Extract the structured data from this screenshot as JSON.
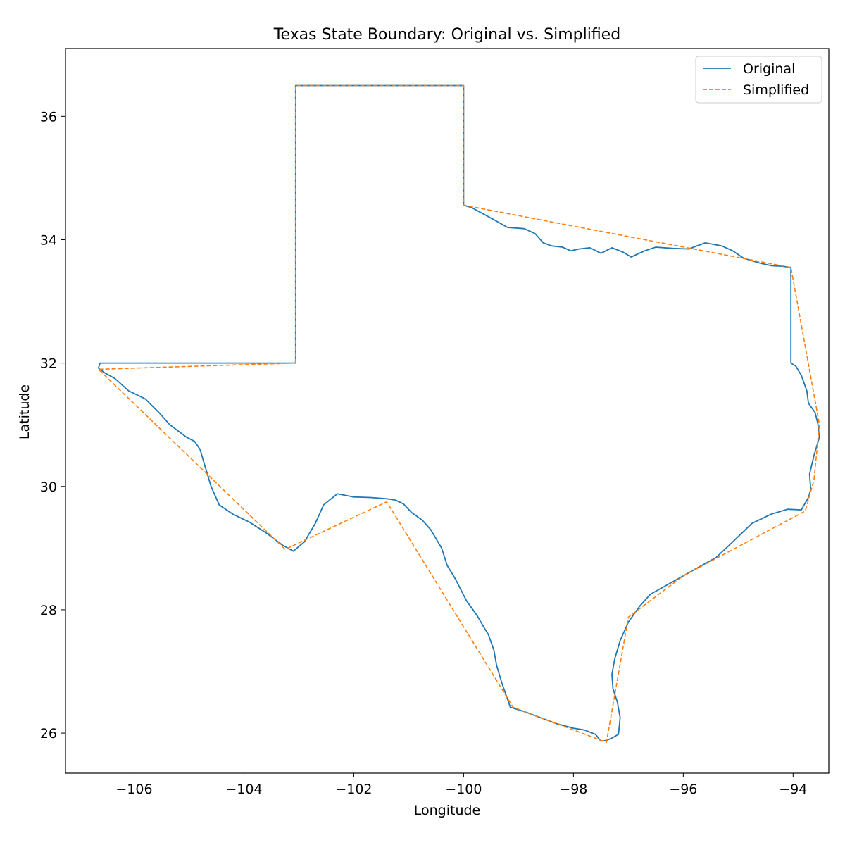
{
  "chart_data": {
    "type": "line",
    "title": "Texas State Boundary: Original vs. Simplified",
    "xlabel": "Longitude",
    "ylabel": "Latitude",
    "xlim": [
      -107.25,
      -93.35
    ],
    "ylim": [
      25.35,
      37.1
    ],
    "x_ticks": [
      -106,
      -104,
      -102,
      -100,
      -98,
      -96,
      -94
    ],
    "x_tick_labels": [
      "−106",
      "−104",
      "−102",
      "−100",
      "−98",
      "−96",
      "−94"
    ],
    "y_ticks": [
      26,
      28,
      30,
      32,
      34,
      36
    ],
    "y_tick_labels": [
      "26",
      "28",
      "30",
      "32",
      "34",
      "36"
    ],
    "grid": false,
    "legend_position": "top-right",
    "series": [
      {
        "name": "Original",
        "color": "#1f77b4",
        "style": "solid",
        "x": [
          -103.06,
          -103.06,
          -100.0,
          -100.0,
          -99.85,
          -99.5,
          -99.2,
          -98.9,
          -98.7,
          -98.55,
          -98.4,
          -98.2,
          -98.05,
          -97.9,
          -97.7,
          -97.5,
          -97.3,
          -97.1,
          -96.95,
          -96.7,
          -96.5,
          -96.2,
          -95.9,
          -95.6,
          -95.3,
          -95.1,
          -94.9,
          -94.6,
          -94.4,
          -94.2,
          -94.04,
          -94.04,
          -93.95,
          -93.85,
          -93.75,
          -93.72,
          -93.6,
          -93.55,
          -93.52,
          -93.62,
          -93.7,
          -93.68,
          -93.72,
          -93.8,
          -93.85,
          -94.1,
          -94.4,
          -94.75,
          -95.1,
          -95.4,
          -95.7,
          -96.0,
          -96.3,
          -96.6,
          -96.8,
          -97.0,
          -97.15,
          -97.25,
          -97.3,
          -97.28,
          -97.2,
          -97.15,
          -97.18,
          -97.3,
          -97.4,
          -97.5,
          -97.6,
          -97.8,
          -98.0,
          -98.3,
          -98.6,
          -98.9,
          -99.15,
          -99.2,
          -99.3,
          -99.4,
          -99.45,
          -99.55,
          -99.62,
          -99.75,
          -99.95,
          -100.15,
          -100.3,
          -100.4,
          -100.5,
          -100.6,
          -100.75,
          -100.95,
          -101.1,
          -101.25,
          -101.4,
          -101.7,
          -102.0,
          -102.3,
          -102.55,
          -102.7,
          -102.9,
          -103.1,
          -103.3,
          -103.6,
          -103.9,
          -104.2,
          -104.45,
          -104.6,
          -104.7,
          -104.8,
          -104.9,
          -105.05,
          -105.35,
          -105.55,
          -105.8,
          -106.1,
          -106.35,
          -106.55,
          -106.65,
          -106.62,
          -103.06
        ],
        "y": [
          32.0,
          36.5,
          36.5,
          34.56,
          34.52,
          34.35,
          34.2,
          34.18,
          34.1,
          33.95,
          33.9,
          33.88,
          33.82,
          33.85,
          33.87,
          33.78,
          33.87,
          33.8,
          33.72,
          33.82,
          33.88,
          33.86,
          33.85,
          33.95,
          33.9,
          33.82,
          33.7,
          33.62,
          33.58,
          33.57,
          33.55,
          32.0,
          31.95,
          31.8,
          31.55,
          31.35,
          31.2,
          31.02,
          30.8,
          30.5,
          30.2,
          29.95,
          29.82,
          29.7,
          29.62,
          29.63,
          29.55,
          29.4,
          29.1,
          28.85,
          28.7,
          28.55,
          28.4,
          28.25,
          28.05,
          27.8,
          27.5,
          27.2,
          26.95,
          26.72,
          26.5,
          26.25,
          25.98,
          25.92,
          25.88,
          25.87,
          25.98,
          26.05,
          26.08,
          26.15,
          26.25,
          26.35,
          26.42,
          26.55,
          26.8,
          27.1,
          27.35,
          27.6,
          27.7,
          27.9,
          28.15,
          28.5,
          28.72,
          29.0,
          29.15,
          29.3,
          29.45,
          29.58,
          29.72,
          29.78,
          29.8,
          29.82,
          29.83,
          29.88,
          29.7,
          29.4,
          29.1,
          28.95,
          29.05,
          29.25,
          29.42,
          29.55,
          29.7,
          30.0,
          30.3,
          30.6,
          30.73,
          30.8,
          31.0,
          31.2,
          31.42,
          31.55,
          31.75,
          31.85,
          31.92,
          32.0,
          32.0
        ]
      },
      {
        "name": "Simplified",
        "color": "#ff7f0e",
        "style": "dashed",
        "x": [
          -103.06,
          -103.06,
          -100.0,
          -100.0,
          -94.04,
          -93.52,
          -93.62,
          -93.78,
          -96.0,
          -97.0,
          -97.4,
          -99.1,
          -101.4,
          -103.25,
          -106.65,
          -103.06
        ],
        "y": [
          32.0,
          36.5,
          36.5,
          34.56,
          33.55,
          31.0,
          30.1,
          29.6,
          28.55,
          27.88,
          25.85,
          26.42,
          29.75,
          28.98,
          31.9,
          32.0
        ]
      }
    ]
  }
}
